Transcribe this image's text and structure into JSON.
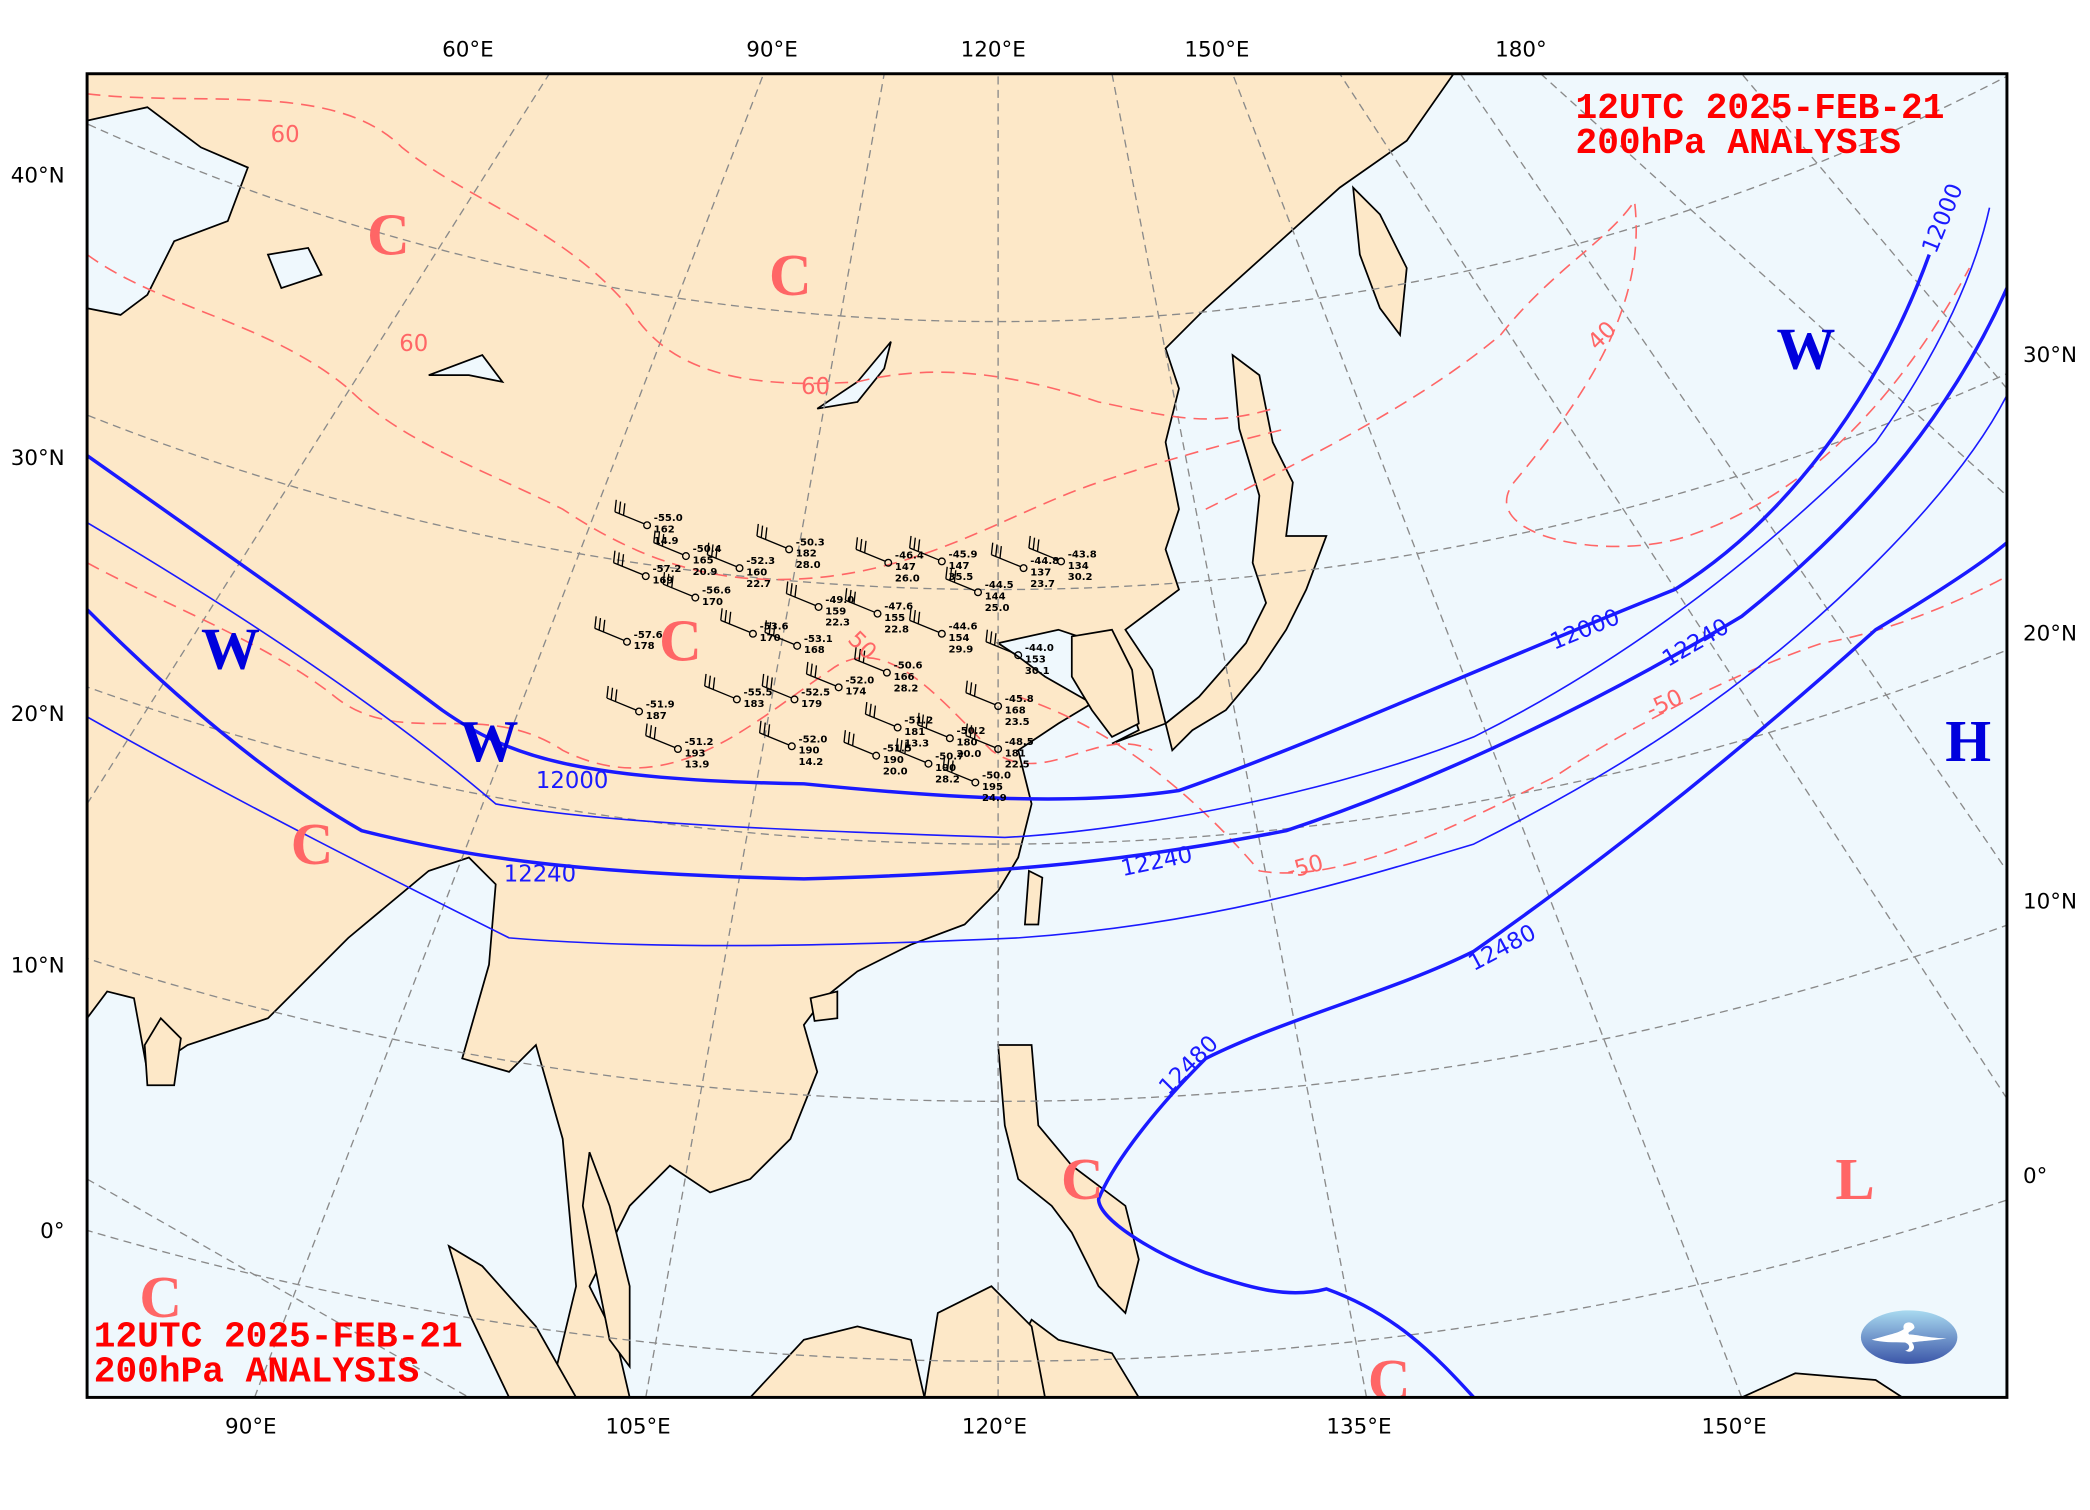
{
  "map": {
    "title_top_right": {
      "line1": "12UTC  2025-FEB-21",
      "line2": "200hPa ANALYSIS"
    },
    "title_bottom_left": {
      "line1": "12UTC  2025-FEB-21",
      "line2": "200hPa ANALYSIS"
    },
    "colors": {
      "land": "#fde8c8",
      "ocean": "#eff8fd",
      "height_contour": "#1a1aff",
      "isotherm": "#ff6666",
      "title": "#ff0000",
      "cold_marker": "#ff6666",
      "wind_marker": "#0000dd"
    },
    "top_labels": [
      "60°E",
      "90°E",
      "120°E",
      "150°E",
      "180°"
    ],
    "bottom_labels": [
      "90°E",
      "105°E",
      "120°E",
      "135°E",
      "150°E"
    ],
    "left_labels": [
      "40°N",
      "30°N",
      "20°N",
      "10°N",
      "0°"
    ],
    "right_labels": [
      "30°N",
      "20°N",
      "10°N",
      "0°"
    ],
    "height_labels": [
      "12000",
      "12000",
      "12000",
      "12240",
      "12240",
      "12240",
      "12480",
      "12480"
    ],
    "isotherm_labels": [
      "60",
      "60",
      "60",
      "50",
      "-50",
      "-50",
      "40"
    ],
    "markers": [
      "C",
      "C",
      "C",
      "C",
      "C",
      "C",
      "C",
      "L",
      "W",
      "W",
      "W",
      "H"
    ],
    "logo": "cwa-logo-icon",
    "stations": [
      {
        "t": "-55.0",
        "h": "162",
        "d": "14.9"
      },
      {
        "t": "-50.4",
        "h": "165",
        "d": "20.9"
      },
      {
        "t": "-52.3",
        "h": "160",
        "d": "22.7"
      },
      {
        "t": "-50.3",
        "h": "182",
        "d": "28.0"
      },
      {
        "t": "-57.2",
        "h": "169",
        "d": ""
      },
      {
        "t": "-56.6",
        "h": "170",
        "d": ""
      },
      {
        "t": "-46.4",
        "h": "147",
        "d": "26.0"
      },
      {
        "t": "-45.9",
        "h": "147",
        "d": "35.5"
      },
      {
        "t": "-44.8",
        "h": "137",
        "d": "23.7"
      },
      {
        "t": "-43.8",
        "h": "134",
        "d": "30.2"
      },
      {
        "t": "-49.0",
        "h": "159",
        "d": "22.3"
      },
      {
        "t": "-47.6",
        "h": "155",
        "d": "22.8"
      },
      {
        "t": "-44.5",
        "h": "144",
        "d": "25.0"
      },
      {
        "t": "-53.6",
        "h": "170",
        "d": ""
      },
      {
        "t": "-53.1",
        "h": "168",
        "d": ""
      },
      {
        "t": "-57.6",
        "h": "178",
        "d": ""
      },
      {
        "t": "-44.6",
        "h": "154",
        "d": "29.9"
      },
      {
        "t": "-44.0",
        "h": "153",
        "d": "30.1"
      },
      {
        "t": "-50.6",
        "h": "166",
        "d": "28.2"
      },
      {
        "t": "-52.0",
        "h": "174",
        "d": ""
      },
      {
        "t": "-55.5",
        "h": "183",
        "d": ""
      },
      {
        "t": "-52.5",
        "h": "179",
        "d": ""
      },
      {
        "t": "-51.9",
        "h": "187",
        "d": ""
      },
      {
        "t": "-45.8",
        "h": "168",
        "d": "23.5"
      },
      {
        "t": "-51.2",
        "h": "181",
        "d": "13.3"
      },
      {
        "t": "-50.2",
        "h": "180",
        "d": "20.0"
      },
      {
        "t": "-48.5",
        "h": "181",
        "d": "22.5"
      },
      {
        "t": "-51.2",
        "h": "193",
        "d": "13.9"
      },
      {
        "t": "-52.0",
        "h": "190",
        "d": "14.2"
      },
      {
        "t": "-51.5",
        "h": "190",
        "d": "20.0"
      },
      {
        "t": "-50.7",
        "h": "190",
        "d": "28.2"
      },
      {
        "t": "-50.0",
        "h": "195",
        "d": "24.9"
      }
    ]
  }
}
